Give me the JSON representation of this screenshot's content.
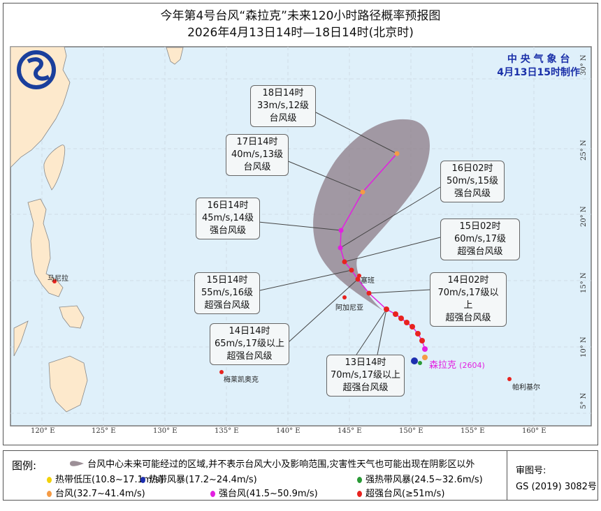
{
  "title": {
    "line1": "今年第4号台风“森拉克”未来120小时路径概率预报图",
    "line2": "2026年4月13日14时—18日14时(北京时)"
  },
  "agency": {
    "name": "中 央 气 象 台",
    "made": "4月13日15时制作"
  },
  "typhoon": {
    "name": "森拉克",
    "code": "(2604)"
  },
  "callouts": [
    {
      "time": "18日14时",
      "wind": "33m/s,12级",
      "grade": "台风级"
    },
    {
      "time": "17日14时",
      "wind": "40m/s,13级",
      "grade": "台风级"
    },
    {
      "time": "16日14时",
      "wind": "45m/s,14级",
      "grade": "强台风级"
    },
    {
      "time": "16日02时",
      "wind": "50m/s,15级",
      "grade": "强台风级"
    },
    {
      "time": "15日02时",
      "wind": "60m/s,17级",
      "grade": "超强台风级"
    },
    {
      "time": "15日14时",
      "wind": "55m/s,16级",
      "grade": "超强台风级"
    },
    {
      "time": "14日02时",
      "wind": "70m/s,17级以上",
      "grade": "超强台风级"
    },
    {
      "time": "14日14时",
      "wind": "65m/s,17级以上",
      "grade": "超强台风级"
    },
    {
      "time": "13日14时",
      "wind": "70m/s,17级以上",
      "grade": "超强台风级"
    }
  ],
  "places": [
    "马尼拉",
    "塞班",
    "阿加尼亚",
    "梅莱凯奥克",
    "帕利基尔"
  ],
  "lon_ticks": [
    "120° E",
    "125° E",
    "130° E",
    "135° E",
    "140° E",
    "145° E",
    "150° E",
    "155° E",
    "160° E"
  ],
  "lat_ticks": [
    "30° N",
    "25° N",
    "20° N",
    "15° N",
    "10° N",
    "5° N"
  ],
  "legend": {
    "head": "图例:",
    "cone": "台风中心未来可能经过的区域,并不表示台风大小及影响范围,灾害性天气也可能出现在阴影区以外",
    "items": [
      {
        "label": "热带低压(10.8~17.1m/s)",
        "color": "#f2d20a"
      },
      {
        "label": "热带风暴(17.2~24.4m/s)",
        "color": "#1d2fb0"
      },
      {
        "label": "强热带风暴(24.5~32.6m/s)",
        "color": "#2a9a36"
      },
      {
        "label": "台风(32.7~41.4m/s)",
        "color": "#f59b45"
      },
      {
        "label": "强台风(41.5~50.9m/s)",
        "color": "#e21fe0"
      },
      {
        "label": "超强台风(≥51m/s)",
        "color": "#e8231f"
      }
    ],
    "review_label": "审图号:",
    "review_no": "GS (2019) 3082号"
  },
  "colors": {
    "sea": "#dff0fa",
    "land": "#fde9cc",
    "cone": "#8c7b86",
    "track": "#e21fe0"
  }
}
